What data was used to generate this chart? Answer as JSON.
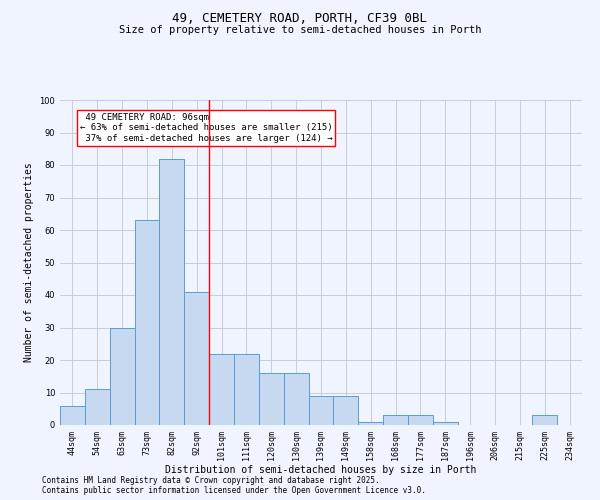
{
  "title": "49, CEMETERY ROAD, PORTH, CF39 0BL",
  "subtitle": "Size of property relative to semi-detached houses in Porth",
  "xlabel": "Distribution of semi-detached houses by size in Porth",
  "ylabel": "Number of semi-detached properties",
  "categories": [
    "44sqm",
    "54sqm",
    "63sqm",
    "73sqm",
    "82sqm",
    "92sqm",
    "101sqm",
    "111sqm",
    "120sqm",
    "130sqm",
    "139sqm",
    "149sqm",
    "158sqm",
    "168sqm",
    "177sqm",
    "187sqm",
    "196sqm",
    "206sqm",
    "215sqm",
    "225sqm",
    "234sqm"
  ],
  "values": [
    6,
    11,
    30,
    63,
    82,
    41,
    22,
    22,
    16,
    16,
    9,
    9,
    1,
    3,
    3,
    1,
    0,
    0,
    0,
    3,
    0
  ],
  "bar_color": "#c7d9f0",
  "bar_edge_color": "#5b9bd5",
  "reference_line_x": 5.5,
  "reference_label": "49 CEMETERY ROAD: 96sqm",
  "pct_smaller": "63% of semi-detached houses are smaller (215)",
  "pct_larger": "37% of semi-detached houses are larger (124)",
  "annotation_box_color": "#ff0000",
  "vline_color": "#ff0000",
  "ylim": [
    0,
    100
  ],
  "yticks": [
    0,
    10,
    20,
    30,
    40,
    50,
    60,
    70,
    80,
    90,
    100
  ],
  "background_color": "#f0f4ff",
  "grid_color": "#c0c8d8",
  "footer1": "Contains HM Land Registry data © Crown copyright and database right 2025.",
  "footer2": "Contains public sector information licensed under the Open Government Licence v3.0.",
  "title_fontsize": 9,
  "subtitle_fontsize": 7.5,
  "axis_label_fontsize": 7,
  "tick_fontsize": 6,
  "annotation_fontsize": 6.5,
  "footer_fontsize": 5.5
}
